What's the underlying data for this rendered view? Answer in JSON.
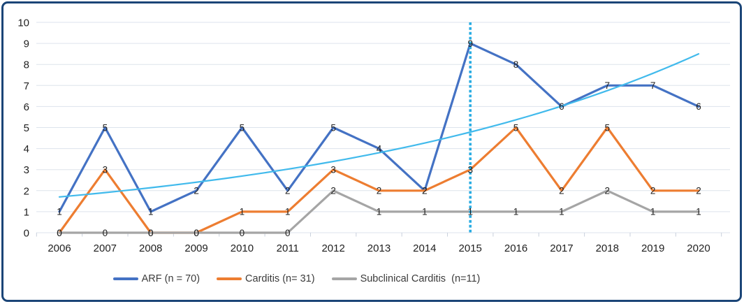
{
  "chart_data": {
    "type": "line",
    "categories": [
      "2006",
      "2007",
      "2008",
      "2009",
      "2010",
      "2011",
      "2012",
      "2013",
      "2014",
      "2015",
      "2016",
      "2017",
      "2018",
      "2019",
      "2020"
    ],
    "series": [
      {
        "name": "ARF (n = 70)",
        "color": "#4472C4",
        "values": [
          1,
          5,
          1,
          2,
          5,
          2,
          5,
          4,
          2,
          9,
          8,
          6,
          7,
          7,
          6
        ]
      },
      {
        "name": "Carditis (n= 31)",
        "color": "#ED7D31",
        "values": [
          0,
          3,
          0,
          0,
          1,
          1,
          3,
          2,
          2,
          3,
          5,
          2,
          5,
          2,
          2
        ]
      },
      {
        "name": "Subclinical Carditis  (n=11)",
        "color": "#A5A5A5",
        "values": [
          0,
          0,
          0,
          0,
          0,
          0,
          2,
          1,
          1,
          1,
          1,
          1,
          2,
          1,
          1
        ]
      }
    ],
    "trendline": {
      "applies_to": "ARF (n = 70)",
      "shape": "exponential",
      "color": "#41BAEC",
      "start_value": 1.7,
      "end_value": 8.5
    },
    "reference_line": {
      "category": "2015",
      "orientation": "vertical",
      "style": "dotted",
      "color": "#29ACE2"
    },
    "ylim": [
      0,
      10
    ],
    "ytick_step": 1,
    "yticks": [
      "0",
      "1",
      "2",
      "3",
      "4",
      "5",
      "6",
      "7",
      "8",
      "9",
      "10"
    ],
    "grid": true,
    "data_labels": true,
    "legend_position": "bottom",
    "title": "",
    "xlabel": "",
    "ylabel": ""
  },
  "colors": {
    "border": "#1B4577",
    "background": "#FFFFFF",
    "gridline": "#DDE3EC",
    "axis_tick": "#C8D0DC",
    "label_text": "#1F1F1F"
  }
}
